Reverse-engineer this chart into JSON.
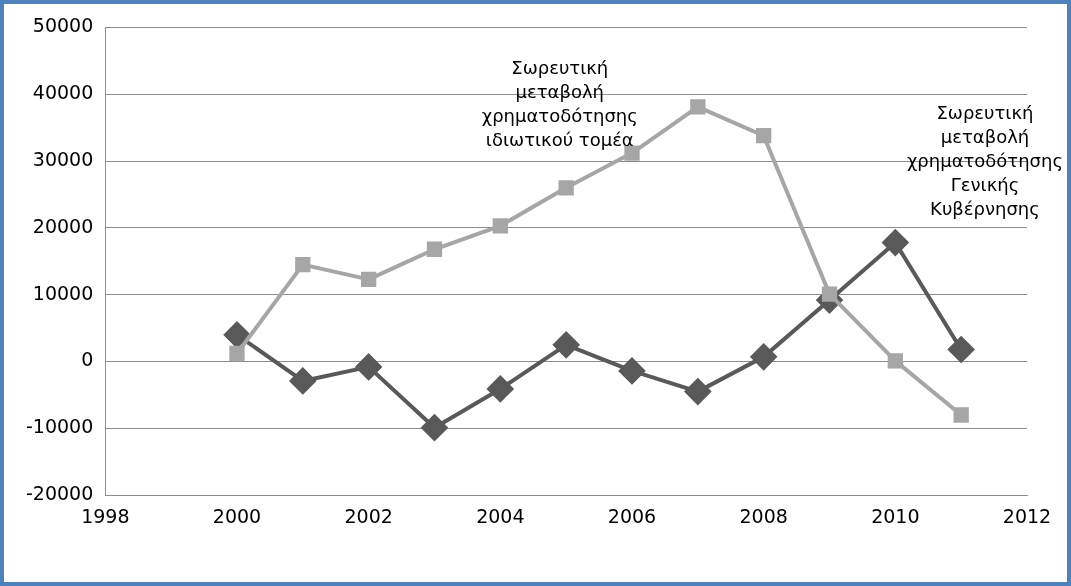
{
  "chart_data": {
    "type": "line",
    "x": [
      2000,
      2001,
      2002,
      2003,
      2004,
      2005,
      2006,
      2007,
      2008,
      2009,
      2010,
      2011
    ],
    "series": [
      {
        "name": "Σωρευτική\nμεταβολή\nχρηματοδότησης\nιδιωτικού τομέα",
        "color": "#a6a6a6",
        "marker": "square",
        "values": [
          1200,
          14500,
          12300,
          16800,
          20300,
          26000,
          31200,
          38100,
          33800,
          10100,
          100,
          -8000
        ]
      },
      {
        "name": "Σωρευτική\nμεταβολή\nχρηματοδότησης\nΓενικής\nΚυβέρνησης",
        "color": "#595959",
        "marker": "diamond",
        "values": [
          4000,
          -2900,
          -800,
          -9900,
          -4100,
          2500,
          -1400,
          -4500,
          700,
          9200,
          17800,
          1800
        ]
      }
    ],
    "xlim": [
      1998,
      2012
    ],
    "xticks": [
      1998,
      2000,
      2002,
      2004,
      2006,
      2008,
      2010,
      2012
    ],
    "ylim": [
      -20000,
      50000
    ],
    "yticks": [
      -20000,
      -10000,
      0,
      10000,
      20000,
      30000,
      40000,
      50000
    ],
    "grid": "y",
    "legend": false
  }
}
